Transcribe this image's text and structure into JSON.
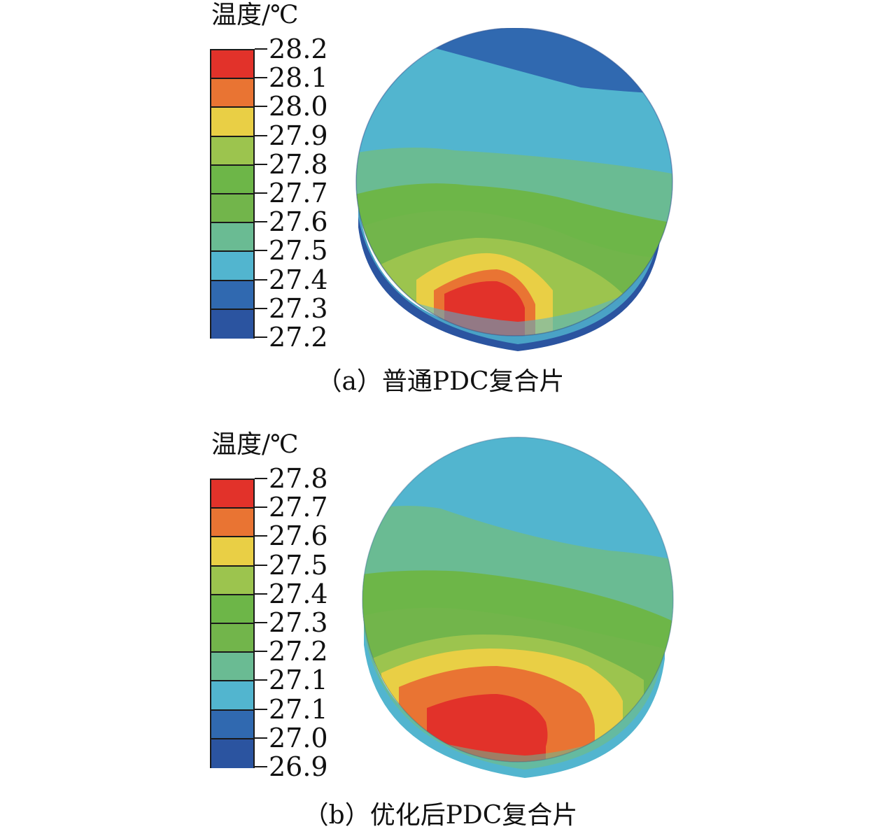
{
  "panels": [
    {
      "legend_title": "温度/℃",
      "legend_ticks": [
        "28.2",
        "28.1",
        "28.0",
        "27.9",
        "27.8",
        "27.7",
        "27.6",
        "27.5",
        "27.4",
        "27.3",
        "27.2"
      ],
      "caption": "（a）普通PDC复合片"
    },
    {
      "legend_title": "温度/℃",
      "legend_ticks": [
        "27.8",
        "27.7",
        "27.6",
        "27.5",
        "27.4",
        "27.3",
        "27.2",
        "27.1",
        "27.1",
        "27.0",
        "26.9"
      ],
      "caption": "（b）优化后PDC复合片"
    }
  ],
  "colors": {
    "band_red": "#e2322a",
    "band_orange": "#e97433",
    "band_yellow": "#e9cf45",
    "band_lightgreen": "#9cc44e",
    "band_green": "#6db648",
    "band_green2": "#72b54b",
    "band_teal": "#6abb93",
    "band_cyan": "#52b5cf",
    "band_blue": "#3069b0",
    "band_darkblue": "#2b54a0"
  }
}
